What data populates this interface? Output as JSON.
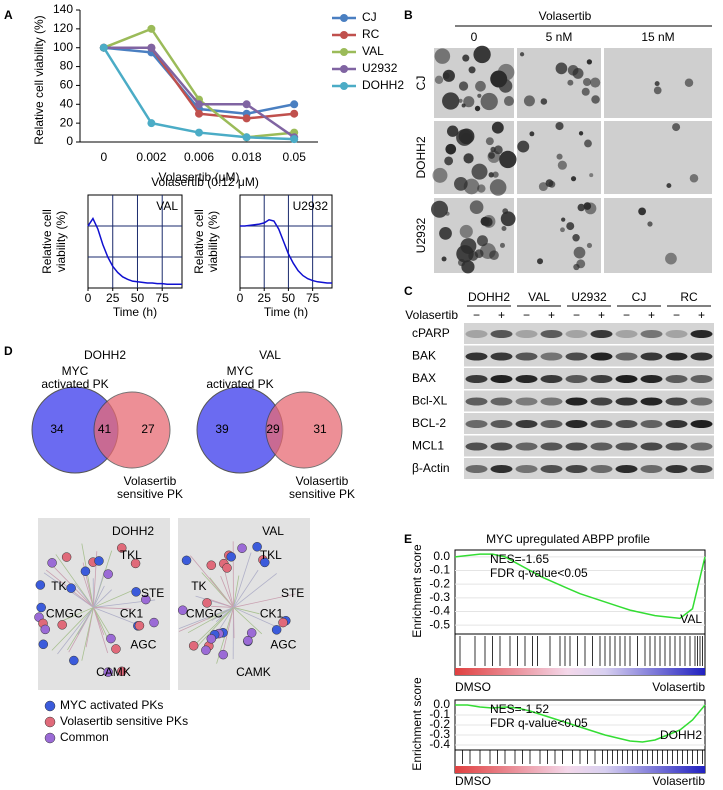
{
  "panel_labels": [
    "A",
    "B",
    "C",
    "D",
    "E"
  ],
  "chart_data": [
    {
      "type": "line",
      "xlabel": "Volasertib (μM)",
      "ylabel": "Relative cell viability (%)",
      "categories": [
        "0",
        "0.002",
        "0.006",
        "0.018",
        "0.05"
      ],
      "series": [
        {
          "name": "CJ",
          "color": "#4a7fc1",
          "values": [
            100,
            95,
            35,
            30,
            40
          ]
        },
        {
          "name": "RC",
          "color": "#c0504d",
          "values": [
            100,
            100,
            30,
            25,
            30
          ]
        },
        {
          "name": "VAL",
          "color": "#9bbb59",
          "values": [
            100,
            120,
            45,
            5,
            10
          ]
        },
        {
          "name": "U2932",
          "color": "#8064a2",
          "values": [
            100,
            100,
            40,
            40,
            5
          ]
        },
        {
          "name": "DOHH2",
          "color": "#4bacc6",
          "values": [
            100,
            20,
            10,
            5,
            3
          ]
        }
      ],
      "ylim": [
        0,
        140
      ],
      "yticks": [
        0,
        20,
        40,
        60,
        80,
        100,
        120,
        140
      ],
      "legend": "right"
    },
    {
      "type": "timecourse",
      "annotation": "VAL",
      "xlabel": "Time (h)",
      "ylabel_lines": [
        "Relative cell",
        "viability (%)"
      ],
      "color": "#1010d0",
      "grid": true,
      "x": [
        0,
        5,
        10,
        15,
        20,
        25,
        30,
        35,
        40,
        45,
        50,
        55,
        60,
        65,
        70,
        75,
        80,
        85,
        90,
        95
      ],
      "values": [
        100,
        112,
        95,
        70,
        50,
        35,
        25,
        18,
        14,
        11,
        10,
        9,
        8,
        8,
        7,
        7,
        6,
        6,
        6,
        6
      ],
      "xlim": [
        0,
        95
      ],
      "xticks": [
        0,
        25,
        50,
        75
      ],
      "ylim": [
        0,
        150
      ]
    },
    {
      "type": "timecourse",
      "annotation": "U2932",
      "xlabel": "Time (h)",
      "ylabel_lines": [
        "Relative cell",
        "viability (%)"
      ],
      "color": "#1010d0",
      "grid": true,
      "x": [
        0,
        5,
        10,
        15,
        20,
        25,
        30,
        35,
        40,
        45,
        50,
        55,
        60,
        65,
        70,
        75,
        80,
        85,
        90,
        95
      ],
      "values": [
        100,
        100,
        101,
        102,
        103,
        105,
        110,
        108,
        95,
        75,
        55,
        40,
        28,
        20,
        15,
        12,
        10,
        9,
        8,
        8
      ],
      "xlim": [
        0,
        95
      ],
      "xticks": [
        0,
        25,
        50,
        75
      ],
      "ylim": [
        0,
        150
      ]
    },
    {
      "type": "enrichment",
      "ylabel": "Enrichment score",
      "label": "VAL",
      "annotations": [
        "NES=-1.65",
        "FDR q-value<0.05"
      ],
      "color": "#33dd33",
      "x_left_label": "DMSO",
      "x_right_label": "Volasertib",
      "x": [
        0,
        5,
        10,
        15,
        20,
        25,
        30,
        35,
        40,
        45,
        50,
        55,
        60,
        65,
        70,
        75,
        80,
        85,
        90,
        95,
        100
      ],
      "values": [
        0,
        0.01,
        0.02,
        0.02,
        0,
        -0.05,
        -0.1,
        -0.15,
        -0.19,
        -0.23,
        -0.27,
        -0.3,
        -0.33,
        -0.36,
        -0.39,
        -0.41,
        -0.43,
        -0.44,
        -0.45,
        -0.38,
        0
      ],
      "hits": [
        2,
        8,
        12,
        15,
        18,
        22,
        25,
        28,
        31,
        33,
        38,
        42,
        44,
        46,
        49,
        52,
        55,
        58,
        60,
        62,
        64,
        66,
        68,
        70,
        73,
        76,
        78,
        80,
        82,
        84,
        86,
        88,
        90,
        92,
        94,
        96,
        97,
        98,
        99
      ],
      "xlim": [
        0,
        100
      ],
      "ylim": [
        -0.55,
        0.05
      ],
      "yticks": [
        {
          "value": 0,
          "label": "0.0"
        },
        -0.1,
        -0.2,
        -0.3,
        -0.4,
        -0.5
      ]
    },
    {
      "type": "enrichment",
      "ylabel": "Enrichment score",
      "label": "DOHH2",
      "annotations": [
        "NES=-1.52",
        "FDR q-value<0.05"
      ],
      "color": "#33dd33",
      "x_left_label": "DMSO",
      "x_right_label": "Volasertib",
      "x": [
        0,
        5,
        10,
        15,
        20,
        25,
        30,
        35,
        40,
        45,
        50,
        55,
        60,
        65,
        70,
        75,
        80,
        85,
        90,
        95,
        100
      ],
      "values": [
        0,
        0,
        -0.02,
        -0.03,
        -0.02,
        -0.03,
        -0.06,
        -0.1,
        -0.14,
        -0.18,
        -0.22,
        -0.26,
        -0.3,
        -0.33,
        -0.36,
        -0.37,
        -0.35,
        -0.3,
        -0.25,
        -0.15,
        0
      ],
      "hits": [
        3,
        6,
        10,
        14,
        17,
        20,
        24,
        27,
        30,
        34,
        37,
        40,
        43,
        47,
        50,
        53,
        56,
        59,
        61,
        63,
        65,
        67,
        69,
        71,
        73,
        75,
        77,
        79,
        81,
        83,
        85,
        87,
        89,
        91,
        93,
        95,
        97,
        99
      ],
      "xlim": [
        0,
        100
      ],
      "ylim": [
        -0.43,
        0.05
      ],
      "yticks": [
        {
          "value": 0,
          "label": "0.0"
        },
        -0.1,
        -0.2,
        -0.3,
        -0.4
      ]
    }
  ],
  "panel_A": {
    "inset_title": "Volasertib (0.12 μM)"
  },
  "panel_B": {
    "title": "Volasertib",
    "columns": [
      "0",
      "5 nM",
      "15 nM"
    ],
    "rows": [
      "CJ",
      "DOHH2",
      "U2932"
    ]
  },
  "panel_C": {
    "groups": [
      "DOHH2",
      "VAL",
      "U2932",
      "CJ",
      "RC"
    ],
    "treatment": "Volasertib",
    "lane_signs": [
      "−",
      "+",
      "−",
      "+",
      "−",
      "+",
      "−",
      "+",
      "−",
      "+"
    ],
    "rows": [
      "cPARP",
      "BAK",
      "BAX",
      "Bcl-XL",
      "BCL-2",
      "MCL1",
      "β-Actin"
    ]
  },
  "panel_D": {
    "venns": [
      {
        "title": "DOHH2",
        "left_label": [
          "MYC",
          "activated PK"
        ],
        "right_label": [
          "Volasertib",
          "sensitive PK"
        ],
        "left_only": 34,
        "both": 41,
        "right_only": 27
      },
      {
        "title": "VAL",
        "left_label": [
          "MYC",
          "activated PK"
        ],
        "right_label": [
          "Volasertib",
          "sensitive PK"
        ],
        "left_only": 39,
        "both": 29,
        "right_only": 31
      }
    ],
    "kinome": [
      {
        "title": "DOHH2",
        "groups": [
          "TK",
          "TKL",
          "STE",
          "CK1",
          "AGC",
          "CAMK",
          "CMGC"
        ]
      },
      {
        "title": "VAL",
        "groups": [
          "TK",
          "TKL",
          "STE",
          "CK1",
          "AGC",
          "CAMK",
          "CMGC"
        ]
      }
    ],
    "legend": [
      {
        "label": "MYC activated PKs",
        "color": "#3b5bdb"
      },
      {
        "label": "Volasertib sensitive PKs",
        "color": "#e06a7a"
      },
      {
        "label": "Common",
        "color": "#9b6bd6"
      }
    ]
  },
  "panel_E": {
    "title": "MYC upregulated ABPP profile"
  }
}
